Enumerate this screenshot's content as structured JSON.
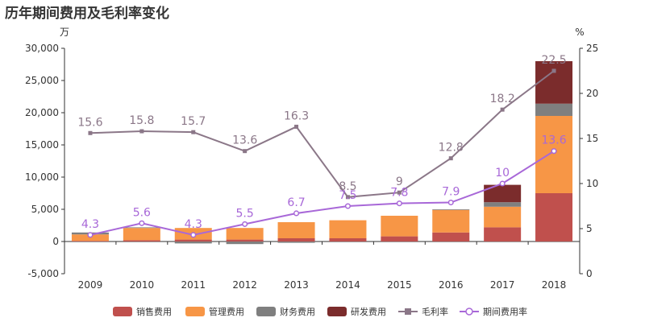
{
  "title": "历年期间费用及毛利率变化",
  "chart_data": {
    "type": "bar",
    "stacked": true,
    "title": "历年期间费用及毛利率变化",
    "categories": [
      "2009",
      "2010",
      "2011",
      "2012",
      "2013",
      "2014",
      "2015",
      "2016",
      "2017",
      "2018"
    ],
    "y_left": {
      "unit": "万",
      "range": [
        -5000,
        30000
      ],
      "ticks": [
        "-5,000",
        "0",
        "5,000",
        "10,000",
        "15,000",
        "20,000",
        "25,000",
        "30,000"
      ]
    },
    "y_right": {
      "unit": "%",
      "range": [
        0,
        25
      ],
      "ticks": [
        "0",
        "5",
        "10",
        "15",
        "20",
        "25"
      ]
    },
    "bar_series": [
      {
        "name": "销售费用",
        "color": "#c0504d",
        "values": [
          100,
          200,
          300,
          300,
          500,
          500,
          800,
          1400,
          2200,
          7500
        ]
      },
      {
        "name": "管理费用",
        "color": "#f79646",
        "values": [
          1000,
          1900,
          1800,
          1800,
          2500,
          2800,
          3200,
          3500,
          3200,
          12000
        ]
      },
      {
        "name": "财务费用",
        "color": "#7f7f7f",
        "values": [
          300,
          100,
          -300,
          -400,
          -200,
          -100,
          0,
          100,
          700,
          1900
        ]
      },
      {
        "name": "研发费用",
        "color": "#7b2c2c",
        "values": [
          0,
          0,
          0,
          0,
          0,
          0,
          0,
          0,
          2700,
          6600
        ]
      }
    ],
    "line_series": [
      {
        "name": "毛利率",
        "color": "#8b7788",
        "marker": "square",
        "values": [
          15.6,
          15.8,
          15.7,
          13.6,
          16.3,
          8.5,
          9,
          12.8,
          18.2,
          22.5
        ],
        "labels": [
          "15.6",
          "15.8",
          "15.7",
          "13.6",
          "16.3",
          "8.5",
          "9",
          "12.8",
          "18.2",
          "22.5"
        ]
      },
      {
        "name": "期间费用率",
        "color": "#a868d8",
        "marker": "circle",
        "values": [
          4.3,
          5.6,
          4.3,
          5.5,
          6.7,
          7.5,
          7.8,
          7.9,
          10,
          13.6
        ],
        "labels": [
          "4.3",
          "5.6",
          "4.3",
          "5.5",
          "6.7",
          "7.5",
          "7.8",
          "7.9",
          "10",
          "13.6"
        ]
      }
    ],
    "legend": {
      "position": "bottom",
      "items": [
        "销售费用",
        "管理费用",
        "财务费用",
        "研发费用",
        "毛利率",
        "期间费用率"
      ]
    },
    "grid": false
  }
}
